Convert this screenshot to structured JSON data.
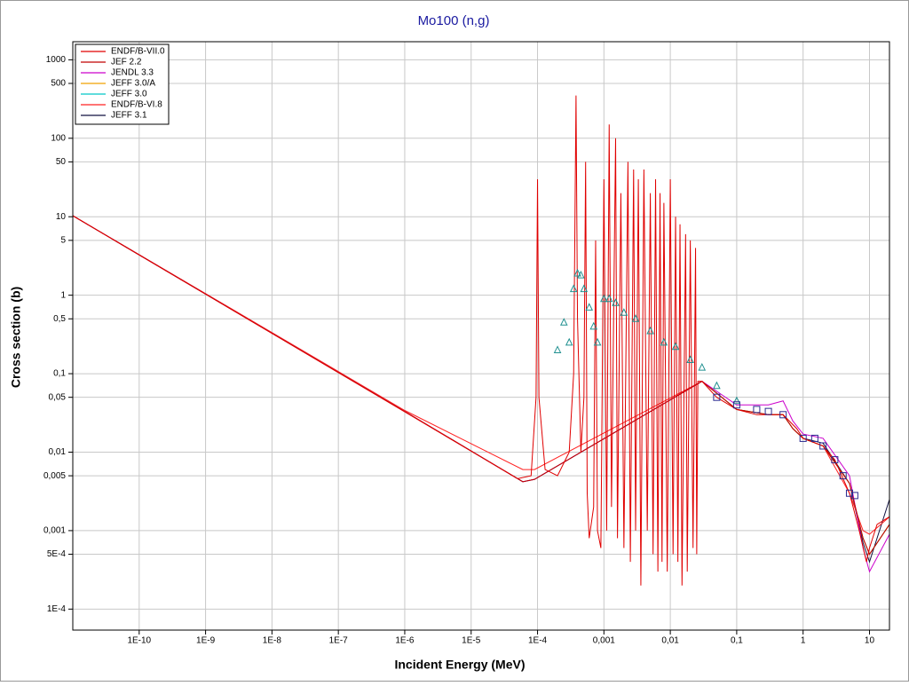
{
  "chart_data": {
    "type": "line",
    "title": "Mo100 (n,g)",
    "x_label": "Incident Energy (MeV)",
    "y_label": "Cross section (b)",
    "xscale": "log",
    "yscale": "log",
    "grid": true,
    "legend": "upper left",
    "xlim": [
      1e-11,
      20
    ],
    "ylim": [
      5.4e-05,
      1700
    ],
    "xticks": [
      {
        "value": 1e-10,
        "label": "1E-10"
      },
      {
        "value": 1e-09,
        "label": "1E-9"
      },
      {
        "value": 1e-08,
        "label": "1E-8"
      },
      {
        "value": 1e-07,
        "label": "1E-7"
      },
      {
        "value": 1e-06,
        "label": "1E-6"
      },
      {
        "value": 1e-05,
        "label": "1E-5"
      },
      {
        "value": 0.0001,
        "label": "1E-4"
      },
      {
        "value": 0.001,
        "label": "0,001"
      },
      {
        "value": 0.01,
        "label": "0,01"
      },
      {
        "value": 0.1,
        "label": "0,1"
      },
      1,
      10
    ],
    "yticks": [
      {
        "value": 0.0001,
        "label": "1E-4"
      },
      {
        "value": 0.0005,
        "label": "5E-4"
      },
      {
        "value": 0.001,
        "label": "0,001"
      },
      {
        "value": 0.005,
        "label": "0,005"
      },
      {
        "value": 0.01,
        "label": "0,01"
      },
      {
        "value": 0.05,
        "label": "0,05"
      },
      {
        "value": 0.1,
        "label": "0,1"
      },
      {
        "value": 0.5,
        "label": "0,5"
      },
      1,
      5,
      10,
      50,
      100,
      500,
      1000
    ],
    "series": [
      {
        "name": "ENDF/B-VII.0",
        "color": "#e00000",
        "x": [
          1e-11,
          1e-06,
          5e-05,
          8e-05,
          9.5e-05,
          0.0001,
          0.000105,
          0.00013,
          0.0002,
          0.0003,
          0.00035,
          0.00038,
          0.0004,
          0.00045,
          0.0005,
          0.00053,
          0.00056,
          0.0006,
          0.0007,
          0.00075,
          0.0008,
          0.0009,
          0.001,
          0.0011,
          0.0012,
          0.0013,
          0.0015,
          0.0016,
          0.0018,
          0.002,
          0.0023,
          0.0025,
          0.0028,
          0.003,
          0.0033,
          0.0036,
          0.004,
          0.0045,
          0.005,
          0.0055,
          0.006,
          0.0065,
          0.007,
          0.0075,
          0.008,
          0.009,
          0.01,
          0.011,
          0.012,
          0.013,
          0.014,
          0.015,
          0.017,
          0.018,
          0.02,
          0.022,
          0.024,
          0.025,
          0.026,
          0.03,
          0.05,
          0.1,
          0.2,
          0.5,
          0.8,
          1,
          2,
          3,
          5,
          7,
          9,
          10,
          13,
          20
        ],
        "values": [
          10.3,
          0.0326,
          0.0046,
          0.005,
          0.05,
          30,
          0.05,
          0.006,
          0.005,
          0.01,
          0.1,
          350,
          0.5,
          0.01,
          0.05,
          50,
          0.003,
          0.0008,
          0.002,
          5,
          0.001,
          0.0006,
          30,
          0.001,
          150,
          0.002,
          100,
          0.0008,
          20,
          0.0006,
          50,
          0.0004,
          40,
          0.001,
          30,
          0.0002,
          40,
          0.001,
          20,
          0.0005,
          30,
          0.0003,
          20,
          0.0004,
          15,
          0.0003,
          30,
          0.0005,
          10,
          0.0004,
          8,
          0.0002,
          6,
          0.0003,
          5,
          0.0006,
          4,
          0.0005,
          0.08,
          0.08,
          0.05,
          0.035,
          0.03,
          0.03,
          0.02,
          0.015,
          0.012,
          0.008,
          0.003,
          0.001,
          0.0004,
          0.0006,
          0.0012,
          0.0015
        ]
      },
      {
        "name": "JEF 2.2",
        "color": "#c00000",
        "x": [
          1e-11,
          1e-06,
          6e-05,
          9e-05,
          0.03,
          0.1,
          0.3,
          0.5,
          0.7,
          1,
          2,
          5,
          8,
          10,
          20
        ],
        "values": [
          10.3,
          0.033,
          0.0042,
          0.0045,
          0.08,
          0.035,
          0.03,
          0.03,
          0.02,
          0.015,
          0.012,
          0.004,
          0.0008,
          0.0005,
          0.0012
        ]
      },
      {
        "name": "JENDL 3.3",
        "color": "#cc00cc",
        "x": [
          1e-11,
          1e-06,
          6e-05,
          9e-05,
          0.03,
          0.1,
          0.3,
          0.5,
          0.7,
          1,
          2,
          5,
          8,
          10,
          20
        ],
        "values": [
          10.3,
          0.033,
          0.0042,
          0.0045,
          0.08,
          0.04,
          0.04,
          0.045,
          0.025,
          0.017,
          0.015,
          0.005,
          0.0006,
          0.0003,
          0.0009
        ]
      },
      {
        "name": "JEFF 3.0/A",
        "color": "#f0a000",
        "x": [
          1e-11,
          1e-06,
          6e-05,
          9e-05,
          0.03,
          0.1,
          0.3,
          0.5,
          0.7,
          1,
          2,
          5,
          8,
          10,
          20
        ],
        "values": [
          10.3,
          0.033,
          0.0042,
          0.0045,
          0.08,
          0.035,
          0.03,
          0.03,
          0.02,
          0.015,
          0.012,
          0.004,
          0.0008,
          0.0005,
          0.0012
        ]
      },
      {
        "name": "JEFF 3.0",
        "color": "#00c8c8",
        "x": [
          1e-11,
          1e-06,
          6e-05,
          9e-05,
          0.03,
          0.1,
          0.3,
          0.5,
          0.7,
          1,
          2,
          5,
          8,
          10,
          20
        ],
        "values": [
          10.3,
          0.033,
          0.0042,
          0.0045,
          0.08,
          0.035,
          0.03,
          0.03,
          0.02,
          0.015,
          0.012,
          0.004,
          0.0008,
          0.0005,
          0.0012
        ]
      },
      {
        "name": "ENDF/B-VI.8",
        "color": "#ff2020",
        "x": [
          1e-11,
          1e-06,
          6e-05,
          9e-05,
          0.03,
          0.1,
          0.3,
          0.5,
          0.7,
          1,
          2,
          5,
          8,
          10,
          20
        ],
        "values": [
          10.3,
          0.034,
          0.006,
          0.006,
          0.08,
          0.035,
          0.03,
          0.03,
          0.02,
          0.015,
          0.012,
          0.003,
          0.001,
          0.0009,
          0.0015
        ]
      },
      {
        "name": "JEFF 3.1",
        "color": "#101040",
        "x": [
          1e-11,
          1e-06,
          6e-05,
          9e-05,
          0.03,
          0.1,
          0.3,
          0.5,
          0.7,
          1,
          2,
          5,
          8,
          10,
          20
        ],
        "values": [
          10.3,
          0.033,
          0.0042,
          0.0045,
          0.08,
          0.035,
          0.03,
          0.03,
          0.02,
          0.015,
          0.013,
          0.004,
          0.0007,
          0.0004,
          0.0025
        ]
      }
    ],
    "points": [
      {
        "marker": "triangle",
        "color": "#209090",
        "x": [
          0.0002,
          0.00025,
          0.0003,
          0.00035,
          0.0004,
          0.00045,
          0.0005,
          0.0006,
          0.0007,
          0.0008,
          0.001,
          0.0012,
          0.0015,
          0.002,
          0.003,
          0.005,
          0.008,
          0.012,
          0.02,
          0.03,
          0.05,
          0.1
        ],
        "values": [
          0.2,
          0.45,
          0.25,
          1.2,
          1.9,
          1.8,
          1.2,
          0.7,
          0.4,
          0.25,
          0.9,
          0.9,
          0.8,
          0.6,
          0.5,
          0.35,
          0.25,
          0.22,
          0.15,
          0.12,
          0.07,
          0.045
        ]
      },
      {
        "marker": "square",
        "color": "#2a2a90",
        "x": [
          0.05,
          0.1,
          0.2,
          0.3,
          0.5,
          1,
          1.5,
          2,
          3,
          4,
          5,
          6
        ],
        "values": [
          0.05,
          0.04,
          0.035,
          0.033,
          0.03,
          0.015,
          0.015,
          0.012,
          0.008,
          0.005,
          0.003,
          0.0028
        ]
      }
    ]
  }
}
